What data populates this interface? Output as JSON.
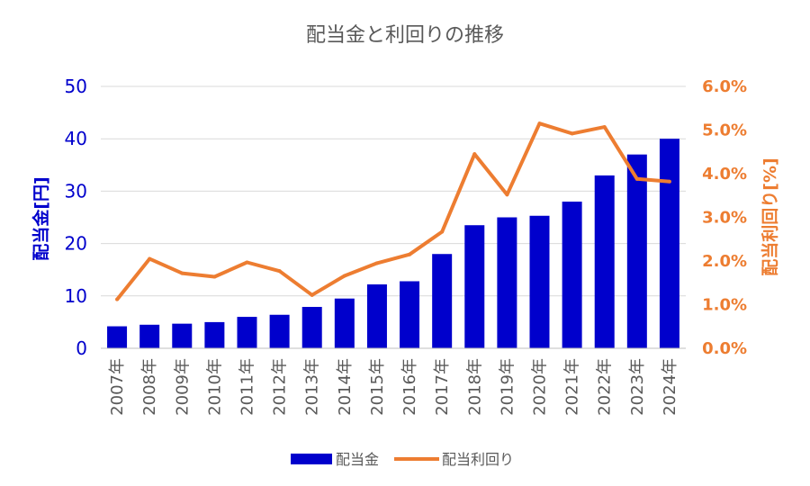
{
  "chart_data": {
    "type": "bar",
    "title": "配当金と利回りの推移",
    "categories": [
      "2007年",
      "2008年",
      "2009年",
      "2010年",
      "2011年",
      "2012年",
      "2013年",
      "2014年",
      "2015年",
      "2016年",
      "2017年",
      "2018年",
      "2019年",
      "2020年",
      "2021年",
      "2022年",
      "2023年",
      "2024年"
    ],
    "series": [
      {
        "name": "配当金",
        "type": "bar",
        "axis": "left",
        "color": "#0000cc",
        "values": [
          4.2,
          4.5,
          4.7,
          5.0,
          6.0,
          6.4,
          7.9,
          9.5,
          12.2,
          12.8,
          18.0,
          23.5,
          25.0,
          25.3,
          28.0,
          33.0,
          37.0,
          40.0
        ]
      },
      {
        "name": "配当利回り",
        "type": "line",
        "axis": "right",
        "color": "#ed7d31",
        "values": [
          1.12,
          2.05,
          1.72,
          1.64,
          1.97,
          1.77,
          1.22,
          1.66,
          1.95,
          2.15,
          2.67,
          4.45,
          3.52,
          5.15,
          4.92,
          5.07,
          3.88,
          3.82
        ]
      }
    ],
    "ylabel": "配当金[円]",
    "ylim": [
      0,
      50
    ],
    "yticks": [
      "0",
      "10",
      "20",
      "30",
      "40",
      "50"
    ],
    "y2label": "配当利回り[%]",
    "y2lim": [
      0,
      6
    ],
    "y2ticks": [
      "0.0%",
      "1.0%",
      "2.0%",
      "3.0%",
      "4.0%",
      "5.0%",
      "6.0%"
    ],
    "grid": true,
    "legend": "bottom"
  }
}
